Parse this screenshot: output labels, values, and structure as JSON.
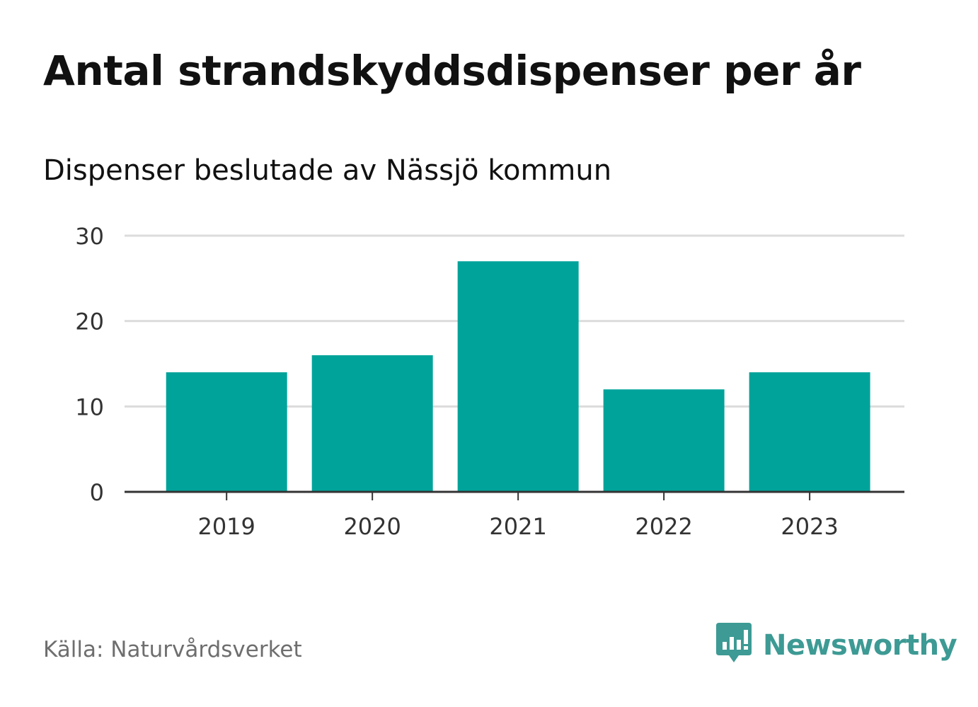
{
  "title": "Antal strandskyddsdispenser per år",
  "subtitle": "Dispenser beslutade av Nässjö kommun",
  "source": "Källa: Naturvårdsverket",
  "brand": {
    "name": "Newsworthy",
    "icon": "newsworthy-logo-icon",
    "color": "#3d9a94"
  },
  "colors": {
    "bar": "#00a39a",
    "grid": "#dcdcdc",
    "axis": "#333333",
    "tick_text": "#333333"
  },
  "chart_data": {
    "type": "bar",
    "title": "Antal strandskyddsdispenser per år",
    "subtitle": "Dispenser beslutade av Nässjö kommun",
    "categories": [
      "2019",
      "2020",
      "2021",
      "2022",
      "2023"
    ],
    "values": [
      14,
      16,
      27,
      12,
      14
    ],
    "ylim": [
      0,
      30
    ],
    "yticks": [
      0,
      10,
      20,
      30
    ],
    "xlabel": "",
    "ylabel": "",
    "grid": true,
    "legend": "none"
  }
}
